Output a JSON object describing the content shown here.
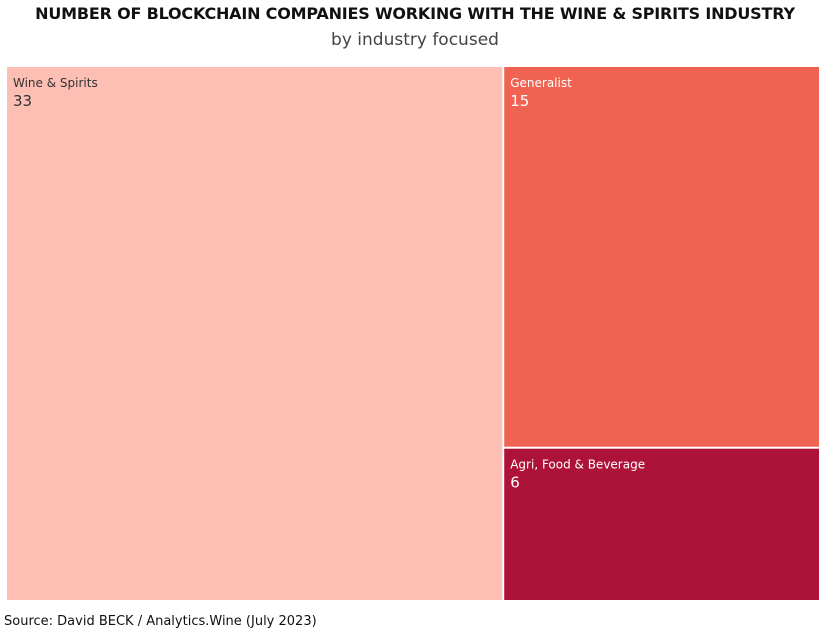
{
  "header": {
    "title": "NUMBER OF BLOCKCHAIN COMPANIES WORKING WITH THE WINE & SPIRITS INDUSTRY",
    "subtitle": "by industry focused"
  },
  "footer": {
    "source": "Source: David BECK / Analytics.Wine (July 2023)"
  },
  "chart_data": {
    "type": "treemap",
    "title": "NUMBER OF BLOCKCHAIN COMPANIES WORKING WITH THE WINE & SPIRITS INDUSTRY",
    "subtitle": "by industry focused",
    "categories": [
      "Wine & Spirits",
      "Generalist",
      "Agri, Food & Beverage"
    ],
    "values": [
      33,
      15,
      6
    ],
    "colors": [
      "#fdbeb3",
      "#f06352",
      "#ad1238"
    ],
    "label_colors": [
      "#333333",
      "#ffffff",
      "#ffffff"
    ]
  }
}
